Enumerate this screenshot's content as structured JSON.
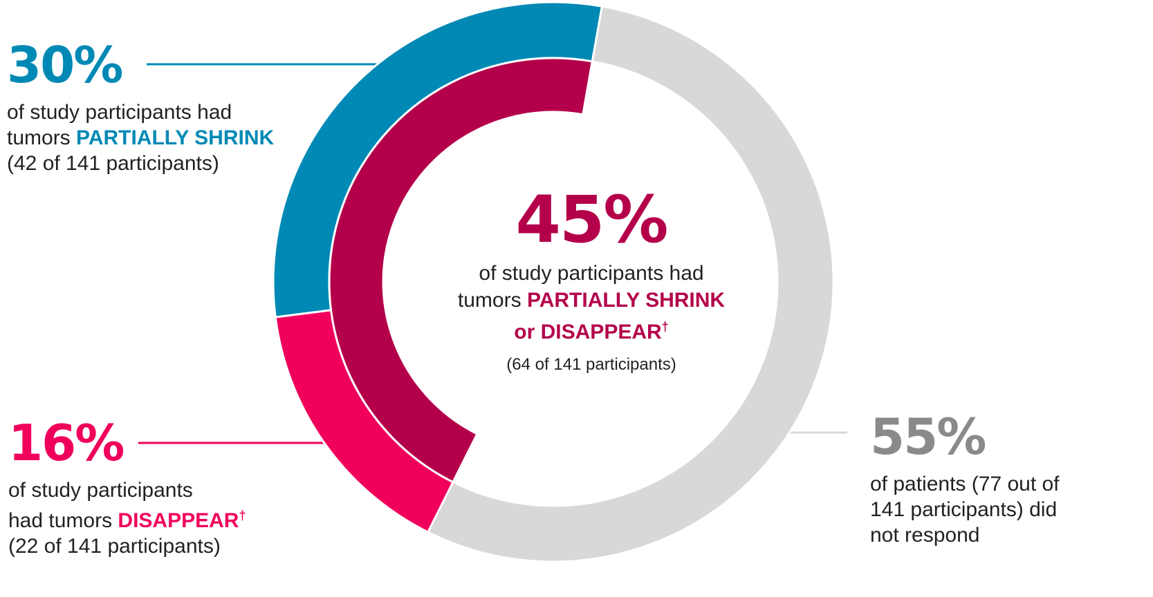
{
  "colors": {
    "partial": "#0089b5",
    "disappear": "#f0005b",
    "combined": "#b4004a",
    "no_response": "#d8d8d8",
    "no_response_text": "#8a8a8a"
  },
  "callouts": {
    "partial": {
      "pct": "30%",
      "line1": "of study participants had",
      "line2_pre": "tumors ",
      "line2_em": "PARTIALLY SHRINK",
      "line3": "(42 of 141 participants)"
    },
    "disappear": {
      "pct": "16%",
      "line1": "of study participants",
      "line2_pre": "had tumors ",
      "line2_em": "DISAPPEAR",
      "dagger": "†",
      "line3": "(22 of 141 participants)"
    },
    "no_response": {
      "pct": "55%",
      "line1": "of patients (77 out of",
      "line2": "141 participants) did",
      "line3": "not respond"
    },
    "center": {
      "pct": "45%",
      "line1": "of study participants had",
      "line2_pre": "tumors ",
      "line2_em": "PARTIALLY SHRINK",
      "line3_em": "or DISAPPEAR",
      "dagger": "†",
      "line4": "(64 of 141 participants)"
    }
  },
  "chart_data": {
    "type": "pie",
    "total": 141,
    "outer_ring": [
      {
        "category": "PARTIALLY SHRINK",
        "count": 42,
        "percent": 30
      },
      {
        "category": "DISAPPEAR",
        "count": 22,
        "percent": 16
      },
      {
        "category": "did not respond",
        "count": 77,
        "percent": 55
      }
    ],
    "inner_ring": [
      {
        "category": "PARTIALLY SHRINK or DISAPPEAR",
        "count": 64,
        "percent": 45
      }
    ]
  }
}
